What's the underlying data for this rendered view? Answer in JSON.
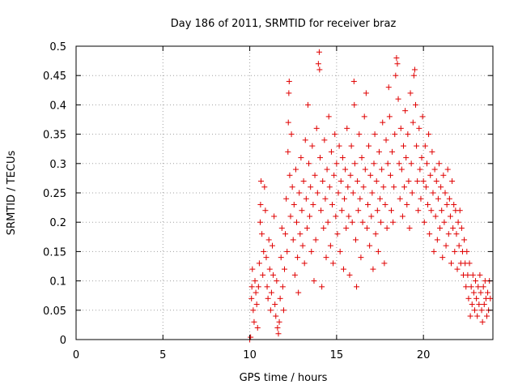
{
  "chart_data": {
    "type": "scatter",
    "title": "Day 186 of 2011, SRMTID for receiver braz",
    "xlabel": "GPS time / hours",
    "ylabel": "SRMTID / TECUs",
    "xlim": [
      0,
      24
    ],
    "ylim": [
      0,
      0.5
    ],
    "xticks": [
      0,
      5,
      10,
      15,
      20
    ],
    "xtick_labels": [
      "0",
      "5",
      "10",
      "15",
      "20"
    ],
    "yticks": [
      0,
      0.05,
      0.1,
      0.15,
      0.2,
      0.25,
      0.3,
      0.35,
      0.4,
      0.45,
      0.5
    ],
    "ytick_labels": [
      "0",
      "0.05",
      "0.1",
      "0.15",
      "0.2",
      "0.25",
      "0.3",
      "0.35",
      "0.4",
      "0.45",
      "0.5"
    ],
    "grid": true,
    "marker": "+",
    "color": "#e00000",
    "series": [
      {
        "name": "SRMTID",
        "points": [
          [
            10.0,
            0.0
          ],
          [
            10.05,
            0.004
          ],
          [
            10.1,
            0.07
          ],
          [
            10.12,
            0.09
          ],
          [
            10.15,
            0.12
          ],
          [
            10.2,
            0.05
          ],
          [
            10.25,
            0.03
          ],
          [
            10.3,
            0.1
          ],
          [
            10.35,
            0.08
          ],
          [
            10.4,
            0.06
          ],
          [
            10.45,
            0.02
          ],
          [
            10.5,
            0.09
          ],
          [
            10.55,
            0.13
          ],
          [
            10.6,
            0.2
          ],
          [
            10.62,
            0.23
          ],
          [
            10.65,
            0.27
          ],
          [
            10.7,
            0.18
          ],
          [
            10.75,
            0.11
          ],
          [
            10.8,
            0.15
          ],
          [
            10.85,
            0.26
          ],
          [
            10.9,
            0.22
          ],
          [
            10.95,
            0.14
          ],
          [
            11.0,
            0.09
          ],
          [
            11.05,
            0.07
          ],
          [
            11.1,
            0.17
          ],
          [
            11.15,
            0.12
          ],
          [
            11.2,
            0.05
          ],
          [
            11.25,
            0.08
          ],
          [
            11.3,
            0.16
          ],
          [
            11.35,
            0.11
          ],
          [
            11.4,
            0.21
          ],
          [
            11.45,
            0.06
          ],
          [
            11.5,
            0.04
          ],
          [
            11.55,
            0.1
          ],
          [
            11.6,
            0.02
          ],
          [
            11.65,
            0.01
          ],
          [
            11.7,
            0.03
          ],
          [
            11.75,
            0.07
          ],
          [
            11.8,
            0.14
          ],
          [
            11.85,
            0.19
          ],
          [
            11.9,
            0.09
          ],
          [
            11.95,
            0.05
          ],
          [
            12.0,
            0.12
          ],
          [
            12.05,
            0.18
          ],
          [
            12.1,
            0.24
          ],
          [
            12.15,
            0.15
          ],
          [
            12.2,
            0.32
          ],
          [
            12.22,
            0.37
          ],
          [
            12.25,
            0.42
          ],
          [
            12.27,
            0.44
          ],
          [
            12.3,
            0.28
          ],
          [
            12.35,
            0.21
          ],
          [
            12.4,
            0.35
          ],
          [
            12.45,
            0.26
          ],
          [
            12.5,
            0.17
          ],
          [
            12.55,
            0.23
          ],
          [
            12.6,
            0.11
          ],
          [
            12.65,
            0.29
          ],
          [
            12.7,
            0.2
          ],
          [
            12.75,
            0.14
          ],
          [
            12.8,
            0.08
          ],
          [
            12.85,
            0.25
          ],
          [
            12.9,
            0.18
          ],
          [
            12.95,
            0.31
          ],
          [
            13.0,
            0.22
          ],
          [
            13.05,
            0.16
          ],
          [
            13.1,
            0.27
          ],
          [
            13.15,
            0.13
          ],
          [
            13.2,
            0.34
          ],
          [
            13.25,
            0.24
          ],
          [
            13.3,
            0.19
          ],
          [
            13.35,
            0.4
          ],
          [
            13.4,
            0.3
          ],
          [
            13.45,
            0.21
          ],
          [
            13.5,
            0.26
          ],
          [
            13.55,
            0.15
          ],
          [
            13.6,
            0.33
          ],
          [
            13.65,
            0.23
          ],
          [
            13.7,
            0.1
          ],
          [
            13.75,
            0.28
          ],
          [
            13.8,
            0.17
          ],
          [
            13.85,
            0.36
          ],
          [
            13.9,
            0.25
          ],
          [
            13.95,
            0.47
          ],
          [
            14.0,
            0.49
          ],
          [
            14.02,
            0.46
          ],
          [
            14.05,
            0.31
          ],
          [
            14.1,
            0.22
          ],
          [
            14.15,
            0.09
          ],
          [
            14.2,
            0.27
          ],
          [
            14.25,
            0.19
          ],
          [
            14.3,
            0.34
          ],
          [
            14.35,
            0.24
          ],
          [
            14.4,
            0.14
          ],
          [
            14.45,
            0.29
          ],
          [
            14.5,
            0.2
          ],
          [
            14.55,
            0.38
          ],
          [
            14.6,
            0.26
          ],
          [
            14.65,
            0.16
          ],
          [
            14.7,
            0.32
          ],
          [
            14.75,
            0.23
          ],
          [
            14.8,
            0.13
          ],
          [
            14.85,
            0.28
          ],
          [
            14.9,
            0.35
          ],
          [
            14.95,
            0.21
          ],
          [
            15.0,
            0.3
          ],
          [
            15.05,
            0.18
          ],
          [
            15.1,
            0.25
          ],
          [
            15.15,
            0.33
          ],
          [
            15.2,
            0.15
          ],
          [
            15.25,
            0.27
          ],
          [
            15.3,
            0.22
          ],
          [
            15.35,
            0.31
          ],
          [
            15.4,
            0.12
          ],
          [
            15.45,
            0.24
          ],
          [
            15.5,
            0.29
          ],
          [
            15.55,
            0.19
          ],
          [
            15.6,
            0.36
          ],
          [
            15.65,
            0.26
          ],
          [
            15.7,
            0.21
          ],
          [
            15.75,
            0.11
          ],
          [
            15.8,
            0.28
          ],
          [
            15.85,
            0.33
          ],
          [
            15.9,
            0.2
          ],
          [
            15.95,
            0.25
          ],
          [
            16.0,
            0.44
          ],
          [
            16.02,
            0.4
          ],
          [
            16.05,
            0.3
          ],
          [
            16.1,
            0.17
          ],
          [
            16.15,
            0.09
          ],
          [
            16.2,
            0.27
          ],
          [
            16.25,
            0.22
          ],
          [
            16.3,
            0.35
          ],
          [
            16.35,
            0.24
          ],
          [
            16.4,
            0.14
          ],
          [
            16.45,
            0.31
          ],
          [
            16.5,
            0.2
          ],
          [
            16.55,
            0.26
          ],
          [
            16.6,
            0.38
          ],
          [
            16.65,
            0.29
          ],
          [
            16.7,
            0.42
          ],
          [
            16.75,
            0.19
          ],
          [
            16.8,
            0.23
          ],
          [
            16.85,
            0.33
          ],
          [
            16.9,
            0.16
          ],
          [
            16.95,
            0.28
          ],
          [
            17.0,
            0.21
          ],
          [
            17.05,
            0.25
          ],
          [
            17.1,
            0.12
          ],
          [
            17.15,
            0.3
          ],
          [
            17.2,
            0.35
          ],
          [
            17.25,
            0.18
          ],
          [
            17.3,
            0.27
          ],
          [
            17.35,
            0.22
          ],
          [
            17.4,
            0.15
          ],
          [
            17.45,
            0.32
          ],
          [
            17.5,
            0.24
          ],
          [
            17.55,
            0.2
          ],
          [
            17.6,
            0.29
          ],
          [
            17.65,
            0.37
          ],
          [
            17.7,
            0.26
          ],
          [
            17.75,
            0.13
          ],
          [
            17.8,
            0.23
          ],
          [
            17.85,
            0.34
          ],
          [
            17.9,
            0.19
          ],
          [
            17.95,
            0.3
          ],
          [
            18.0,
            0.43
          ],
          [
            18.05,
            0.38
          ],
          [
            18.1,
            0.28
          ],
          [
            18.15,
            0.22
          ],
          [
            18.2,
            0.32
          ],
          [
            18.25,
            0.2
          ],
          [
            18.3,
            0.26
          ],
          [
            18.35,
            0.35
          ],
          [
            18.4,
            0.45
          ],
          [
            18.45,
            0.48
          ],
          [
            18.5,
            0.47
          ],
          [
            18.55,
            0.41
          ],
          [
            18.6,
            0.3
          ],
          [
            18.65,
            0.24
          ],
          [
            18.7,
            0.36
          ],
          [
            18.75,
            0.29
          ],
          [
            18.8,
            0.21
          ],
          [
            18.85,
            0.33
          ],
          [
            18.9,
            0.26
          ],
          [
            18.95,
            0.39
          ],
          [
            19.0,
            0.31
          ],
          [
            19.05,
            0.23
          ],
          [
            19.1,
            0.35
          ],
          [
            19.15,
            0.27
          ],
          [
            19.2,
            0.19
          ],
          [
            19.25,
            0.42
          ],
          [
            19.3,
            0.3
          ],
          [
            19.35,
            0.25
          ],
          [
            19.4,
            0.37
          ],
          [
            19.45,
            0.45
          ],
          [
            19.5,
            0.46
          ],
          [
            19.55,
            0.4
          ],
          [
            19.6,
            0.33
          ],
          [
            19.65,
            0.27
          ],
          [
            19.7,
            0.22
          ],
          [
            19.75,
            0.36
          ],
          [
            19.8,
            0.29
          ],
          [
            19.85,
            0.24
          ],
          [
            19.9,
            0.31
          ],
          [
            19.95,
            0.38
          ],
          [
            20.0,
            0.27
          ],
          [
            20.05,
            0.2
          ],
          [
            20.1,
            0.33
          ],
          [
            20.15,
            0.26
          ],
          [
            20.2,
            0.3
          ],
          [
            20.25,
            0.23
          ],
          [
            20.3,
            0.35
          ],
          [
            20.35,
            0.18
          ],
          [
            20.4,
            0.28
          ],
          [
            20.45,
            0.22
          ],
          [
            20.5,
            0.32
          ],
          [
            20.55,
            0.25
          ],
          [
            20.6,
            0.15
          ],
          [
            20.65,
            0.29
          ],
          [
            20.7,
            0.21
          ],
          [
            20.75,
            0.27
          ],
          [
            20.8,
            0.17
          ],
          [
            20.85,
            0.24
          ],
          [
            20.9,
            0.3
          ],
          [
            20.95,
            0.19
          ],
          [
            21.0,
            0.26
          ],
          [
            21.05,
            0.22
          ],
          [
            21.1,
            0.14
          ],
          [
            21.15,
            0.28
          ],
          [
            21.2,
            0.2
          ],
          [
            21.25,
            0.25
          ],
          [
            21.3,
            0.16
          ],
          [
            21.35,
            0.23
          ],
          [
            21.4,
            0.29
          ],
          [
            21.45,
            0.18
          ],
          [
            21.5,
            0.24
          ],
          [
            21.55,
            0.21
          ],
          [
            21.6,
            0.13
          ],
          [
            21.65,
            0.27
          ],
          [
            21.7,
            0.19
          ],
          [
            21.75,
            0.23
          ],
          [
            21.8,
            0.15
          ],
          [
            21.85,
            0.22
          ],
          [
            21.9,
            0.18
          ],
          [
            21.95,
            0.12
          ],
          [
            22.0,
            0.2
          ],
          [
            22.05,
            0.16
          ],
          [
            22.1,
            0.22
          ],
          [
            22.15,
            0.13
          ],
          [
            22.2,
            0.19
          ],
          [
            22.25,
            0.15
          ],
          [
            22.3,
            0.11
          ],
          [
            22.35,
            0.17
          ],
          [
            22.4,
            0.13
          ],
          [
            22.45,
            0.09
          ],
          [
            22.5,
            0.15
          ],
          [
            22.55,
            0.11
          ],
          [
            22.6,
            0.07
          ],
          [
            22.65,
            0.13
          ],
          [
            22.7,
            0.04
          ],
          [
            22.75,
            0.09
          ],
          [
            22.8,
            0.06
          ],
          [
            22.85,
            0.11
          ],
          [
            22.9,
            0.08
          ],
          [
            22.95,
            0.05
          ],
          [
            23.0,
            0.1
          ],
          [
            23.05,
            0.07
          ],
          [
            23.1,
            0.04
          ],
          [
            23.15,
            0.09
          ],
          [
            23.2,
            0.06
          ],
          [
            23.25,
            0.11
          ],
          [
            23.3,
            0.08
          ],
          [
            23.35,
            0.05
          ],
          [
            23.4,
            0.03
          ],
          [
            23.45,
            0.09
          ],
          [
            23.5,
            0.06
          ],
          [
            23.55,
            0.1
          ],
          [
            23.6,
            0.07
          ],
          [
            23.65,
            0.04
          ],
          [
            23.7,
            0.08
          ],
          [
            23.75,
            0.05
          ],
          [
            23.8,
            0.1
          ],
          [
            23.85,
            0.07
          ]
        ]
      }
    ]
  }
}
